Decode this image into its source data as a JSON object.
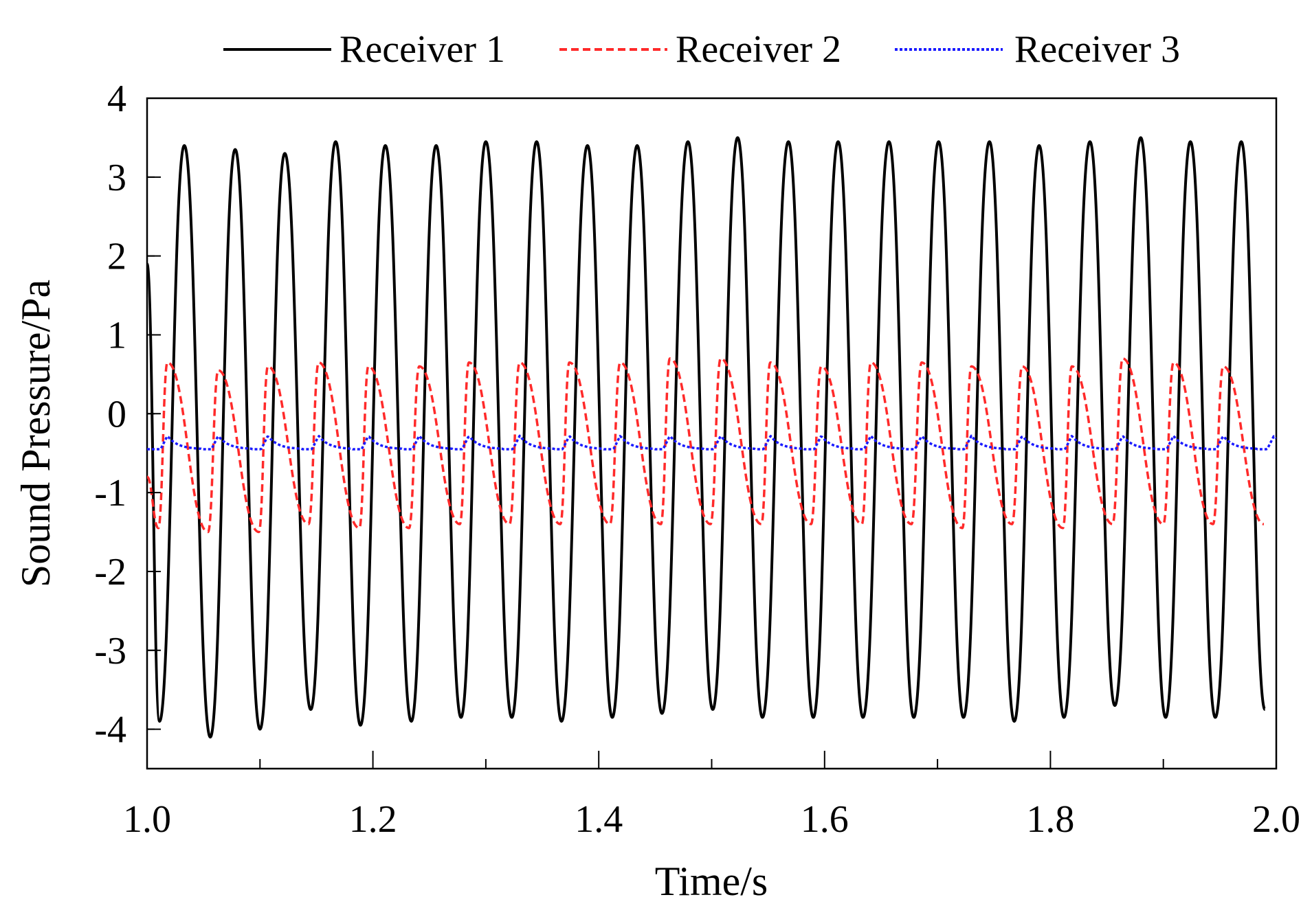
{
  "chart_data": {
    "type": "line",
    "title": "",
    "xlabel": "Time/s",
    "ylabel": "Sound Pressure/Pa",
    "xlim": [
      1.0,
      2.0
    ],
    "ylim": [
      -4.5,
      4
    ],
    "xticks": [
      1.0,
      1.2,
      1.4,
      1.6,
      1.8,
      2.0
    ],
    "xtick_labels": [
      "1.0",
      "1.2",
      "1.4",
      "1.6",
      "1.8",
      "2.0"
    ],
    "yticks": [
      4,
      3,
      2,
      1,
      0,
      -1,
      -2,
      -3,
      -4
    ],
    "ytick_labels": [
      "4",
      "3",
      "2",
      "1",
      "0",
      "-1",
      "-2",
      "-3",
      "-4"
    ],
    "grid": false,
    "legend_position": "top",
    "period_s": 0.0446,
    "series": [
      {
        "name": "Receiver 1",
        "color": "#000000",
        "style": "solid",
        "peak_times": [
          1.033,
          1.078,
          1.122,
          1.167,
          1.211,
          1.256,
          1.3,
          1.345,
          1.39,
          1.434,
          1.479,
          1.523,
          1.568,
          1.612,
          1.657,
          1.701,
          1.746,
          1.79,
          1.835,
          1.88,
          1.924,
          1.969
        ],
        "peak_values": [
          3.4,
          3.35,
          3.3,
          3.45,
          3.4,
          3.4,
          3.45,
          3.45,
          3.4,
          3.4,
          3.45,
          3.5,
          3.45,
          3.45,
          3.45,
          3.45,
          3.45,
          3.4,
          3.45,
          3.5,
          3.45,
          3.45
        ],
        "trough_times": [
          1.011,
          1.056,
          1.1,
          1.145,
          1.189,
          1.234,
          1.278,
          1.323,
          1.367,
          1.412,
          1.456,
          1.501,
          1.545,
          1.59,
          1.634,
          1.679,
          1.723,
          1.768,
          1.812,
          1.857,
          1.902,
          1.946,
          1.99
        ],
        "trough_values": [
          -3.9,
          -4.1,
          -4.0,
          -3.75,
          -3.95,
          -3.9,
          -3.85,
          -3.85,
          -3.9,
          -3.85,
          -3.8,
          -3.75,
          -3.85,
          -3.85,
          -3.85,
          -3.85,
          -3.85,
          -3.9,
          -3.85,
          -3.7,
          -3.85,
          -3.85,
          -3.75
        ],
        "start": [
          1.0,
          1.9
        ]
      },
      {
        "name": "Receiver 2",
        "color": "#ff2a2a",
        "style": "dashed",
        "peak_times": [
          1.018,
          1.063,
          1.107,
          1.152,
          1.196,
          1.241,
          1.285,
          1.33,
          1.374,
          1.419,
          1.463,
          1.508,
          1.552,
          1.597,
          1.641,
          1.686,
          1.73,
          1.775,
          1.819,
          1.864,
          1.909,
          1.953
        ],
        "peak_values": [
          0.65,
          0.55,
          0.6,
          0.65,
          0.6,
          0.6,
          0.65,
          0.65,
          0.65,
          0.65,
          0.7,
          0.7,
          0.65,
          0.6,
          0.65,
          0.65,
          0.6,
          0.6,
          0.6,
          0.7,
          0.65,
          0.6
        ],
        "trough_times": [
          1.01,
          1.054,
          1.099,
          1.143,
          1.188,
          1.232,
          1.277,
          1.321,
          1.366,
          1.41,
          1.455,
          1.499,
          1.544,
          1.588,
          1.633,
          1.677,
          1.722,
          1.766,
          1.811,
          1.855,
          1.9,
          1.944,
          1.989
        ],
        "trough_values": [
          -1.45,
          -1.5,
          -1.5,
          -1.4,
          -1.45,
          -1.45,
          -1.4,
          -1.4,
          -1.4,
          -1.4,
          -1.4,
          -1.4,
          -1.4,
          -1.4,
          -1.4,
          -1.4,
          -1.45,
          -1.4,
          -1.45,
          -1.4,
          -1.4,
          -1.4,
          -1.4
        ],
        "start": [
          1.0,
          -0.8
        ]
      },
      {
        "name": "Receiver 3",
        "color": "#1a1aff",
        "style": "dotted",
        "baseline": -0.45,
        "bump_amplitude": 0.17,
        "peak_times": [
          1.018,
          1.063,
          1.107,
          1.152,
          1.196,
          1.241,
          1.285,
          1.33,
          1.374,
          1.419,
          1.463,
          1.508,
          1.552,
          1.597,
          1.641,
          1.686,
          1.73,
          1.775,
          1.819,
          1.864,
          1.909,
          1.953,
          1.998
        ]
      }
    ]
  }
}
